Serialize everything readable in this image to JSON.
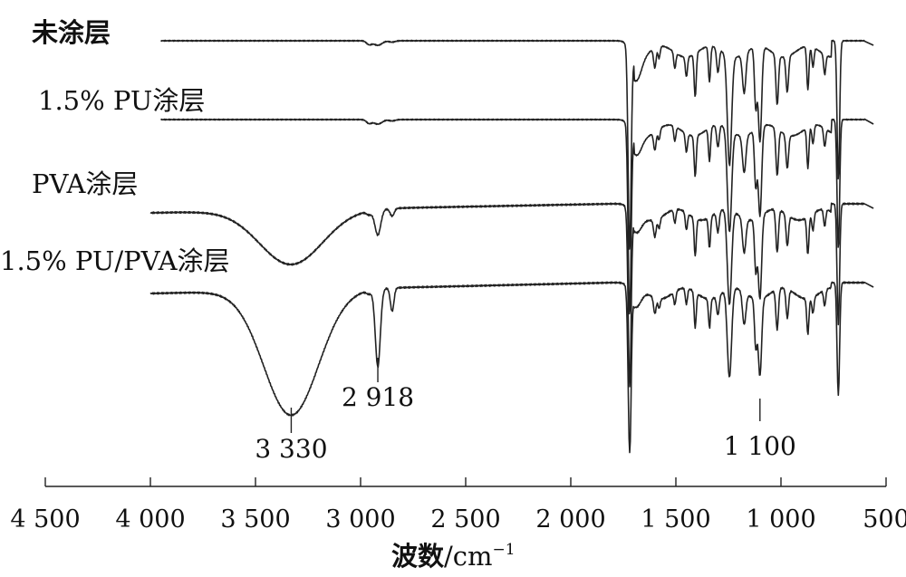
{
  "chart_data": {
    "type": "line",
    "xlabel_main": "波数",
    "xlabel_unit": "/cm",
    "xlabel_exp": "−1",
    "xlim": [
      4500,
      500
    ],
    "x_ticks": [
      {
        "value": 4500,
        "label": "4 500"
      },
      {
        "value": 4000,
        "label": "4 000"
      },
      {
        "value": 3500,
        "label": "3 500"
      },
      {
        "value": 3000,
        "label": "3 000"
      },
      {
        "value": 2500,
        "label": "2 500"
      },
      {
        "value": 2000,
        "label": "2 000"
      },
      {
        "value": 1500,
        "label": "1 500"
      },
      {
        "value": 1000,
        "label": "1 000"
      },
      {
        "value": 500,
        "label": "500"
      }
    ],
    "series": [
      {
        "name": "未涂层",
        "baseline": 0.0
      },
      {
        "name": "1.5% PU涂层",
        "baseline": 0.0
      },
      {
        "name": "PVA涂层",
        "baseline": 0.0
      },
      {
        "name": "1.5% PU/PVA涂层",
        "baseline": 0.0
      }
    ],
    "annotations": [
      {
        "x": 3330,
        "label": "3 330"
      },
      {
        "x": 2918,
        "label": "2 918"
      },
      {
        "x": 1100,
        "label": "1 100"
      }
    ]
  }
}
